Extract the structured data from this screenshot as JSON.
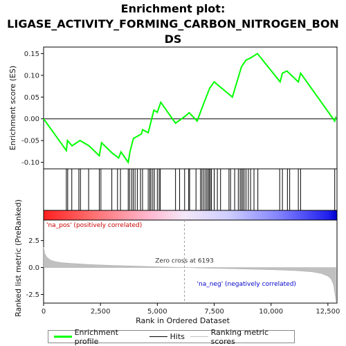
{
  "chart_data": {
    "type": "line",
    "title_lines": [
      "Enrichment plot:",
      "LIGASE_ACTIVITY_FORMING_CARBON_NITROGEN_BON",
      "DS"
    ],
    "es_panel": {
      "ylabel": "Enrichment score (ES)",
      "ylim": [
        -0.115,
        0.165
      ],
      "yticks": [
        "0.15",
        "0.10",
        "0.05",
        "0.00",
        "-0.05",
        "-0.10"
      ],
      "ytick_values": [
        0.15,
        0.1,
        0.05,
        0.0,
        -0.05,
        -0.1
      ],
      "series_color": "#00ff00",
      "points": [
        [
          0,
          0.0
        ],
        [
          1000,
          -0.073
        ],
        [
          1050,
          -0.05
        ],
        [
          1250,
          -0.062
        ],
        [
          1600,
          -0.05
        ],
        [
          2000,
          -0.062
        ],
        [
          2450,
          -0.085
        ],
        [
          2550,
          -0.055
        ],
        [
          3000,
          -0.078
        ],
        [
          3300,
          -0.09
        ],
        [
          3400,
          -0.076
        ],
        [
          3720,
          -0.1
        ],
        [
          3800,
          -0.075
        ],
        [
          3950,
          -0.045
        ],
        [
          4300,
          -0.035
        ],
        [
          4350,
          -0.025
        ],
        [
          4600,
          -0.032
        ],
        [
          4850,
          0.02
        ],
        [
          5000,
          0.015
        ],
        [
          5150,
          0.038
        ],
        [
          5800,
          -0.01
        ],
        [
          6200,
          0.005
        ],
        [
          6400,
          0.014
        ],
        [
          6750,
          -0.005
        ],
        [
          7000,
          0.03
        ],
        [
          7300,
          0.07
        ],
        [
          7500,
          0.085
        ],
        [
          8300,
          0.05
        ],
        [
          8700,
          0.12
        ],
        [
          8900,
          0.135
        ],
        [
          9100,
          0.14
        ],
        [
          9400,
          0.15
        ],
        [
          10400,
          0.085
        ],
        [
          10500,
          0.105
        ],
        [
          10700,
          0.11
        ],
        [
          11200,
          0.085
        ],
        [
          11300,
          0.105
        ],
        [
          12800,
          -0.005
        ],
        [
          12850,
          0.005
        ]
      ]
    },
    "hits": [
      1000,
      1060,
      1240,
      1550,
      1620,
      1980,
      2450,
      2520,
      3000,
      3250,
      3380,
      3720,
      3780,
      3870,
      3940,
      4020,
      4120,
      4260,
      4350,
      4600,
      4670,
      4720,
      4800,
      4870,
      5000,
      5080,
      5130,
      5800,
      5980,
      6200,
      6380,
      6420,
      6700,
      6900,
      6960,
      7030,
      7100,
      7170,
      7230,
      7280,
      7330,
      7380,
      7500,
      7640,
      7780,
      8150,
      8220,
      8400,
      8560,
      8640,
      8700,
      8760,
      8820,
      8900,
      9000,
      9100,
      9250,
      9420,
      10380,
      10500,
      10720,
      10820,
      11200,
      11300,
      12800
    ],
    "ranked_panel": {
      "ylabel": "Ranked list metric (PreRanked)",
      "ylim": [
        -3.3,
        4.4
      ],
      "yticks": [
        "2.5",
        "0.0",
        "-2.5"
      ],
      "ytick_values": [
        2.5,
        0.0,
        -2.5
      ],
      "zero_cross_label": "Zero cross at 6193",
      "zero_cross": 6193,
      "pos_label": "'na_pos' (positively correlated)",
      "neg_label": "'na_neg' (negatively correlated)",
      "profile": [
        [
          0,
          1.9
        ],
        [
          50,
          1.3
        ],
        [
          150,
          0.95
        ],
        [
          300,
          0.7
        ],
        [
          500,
          0.55
        ],
        [
          800,
          0.45
        ],
        [
          1200,
          0.38
        ],
        [
          2000,
          0.28
        ],
        [
          3000,
          0.2
        ],
        [
          4000,
          0.13
        ],
        [
          5000,
          0.07
        ],
        [
          6193,
          0.0
        ],
        [
          7000,
          -0.05
        ],
        [
          8000,
          -0.1
        ],
        [
          9000,
          -0.15
        ],
        [
          10000,
          -0.2
        ],
        [
          11000,
          -0.28
        ],
        [
          11800,
          -0.4
        ],
        [
          12200,
          -0.55
        ],
        [
          12500,
          -0.8
        ],
        [
          12650,
          -1.1
        ],
        [
          12750,
          -1.6
        ],
        [
          12820,
          -2.6
        ],
        [
          12850,
          -3.15
        ]
      ]
    },
    "xaxis": {
      "label": "Rank in Ordered Dataset",
      "xlim": [
        0,
        12900
      ],
      "ticks": [
        "0",
        "2,500",
        "5,000",
        "7,500",
        "10,000",
        "12,500"
      ],
      "tick_values": [
        0,
        2500,
        5000,
        7500,
        10000,
        12500
      ]
    },
    "legend": [
      {
        "label": "Enrichment profile",
        "color": "#00ff00"
      },
      {
        "label": "Hits",
        "color": "#000000"
      },
      {
        "label": "Ranking metric scores",
        "color": "#c0c0c0"
      }
    ],
    "colors": {
      "pos": "#ff0000",
      "neg": "#0000ff",
      "pos_label": "#cc0000",
      "neg_label": "#0000cc",
      "fill": "#c0c0c0"
    }
  }
}
